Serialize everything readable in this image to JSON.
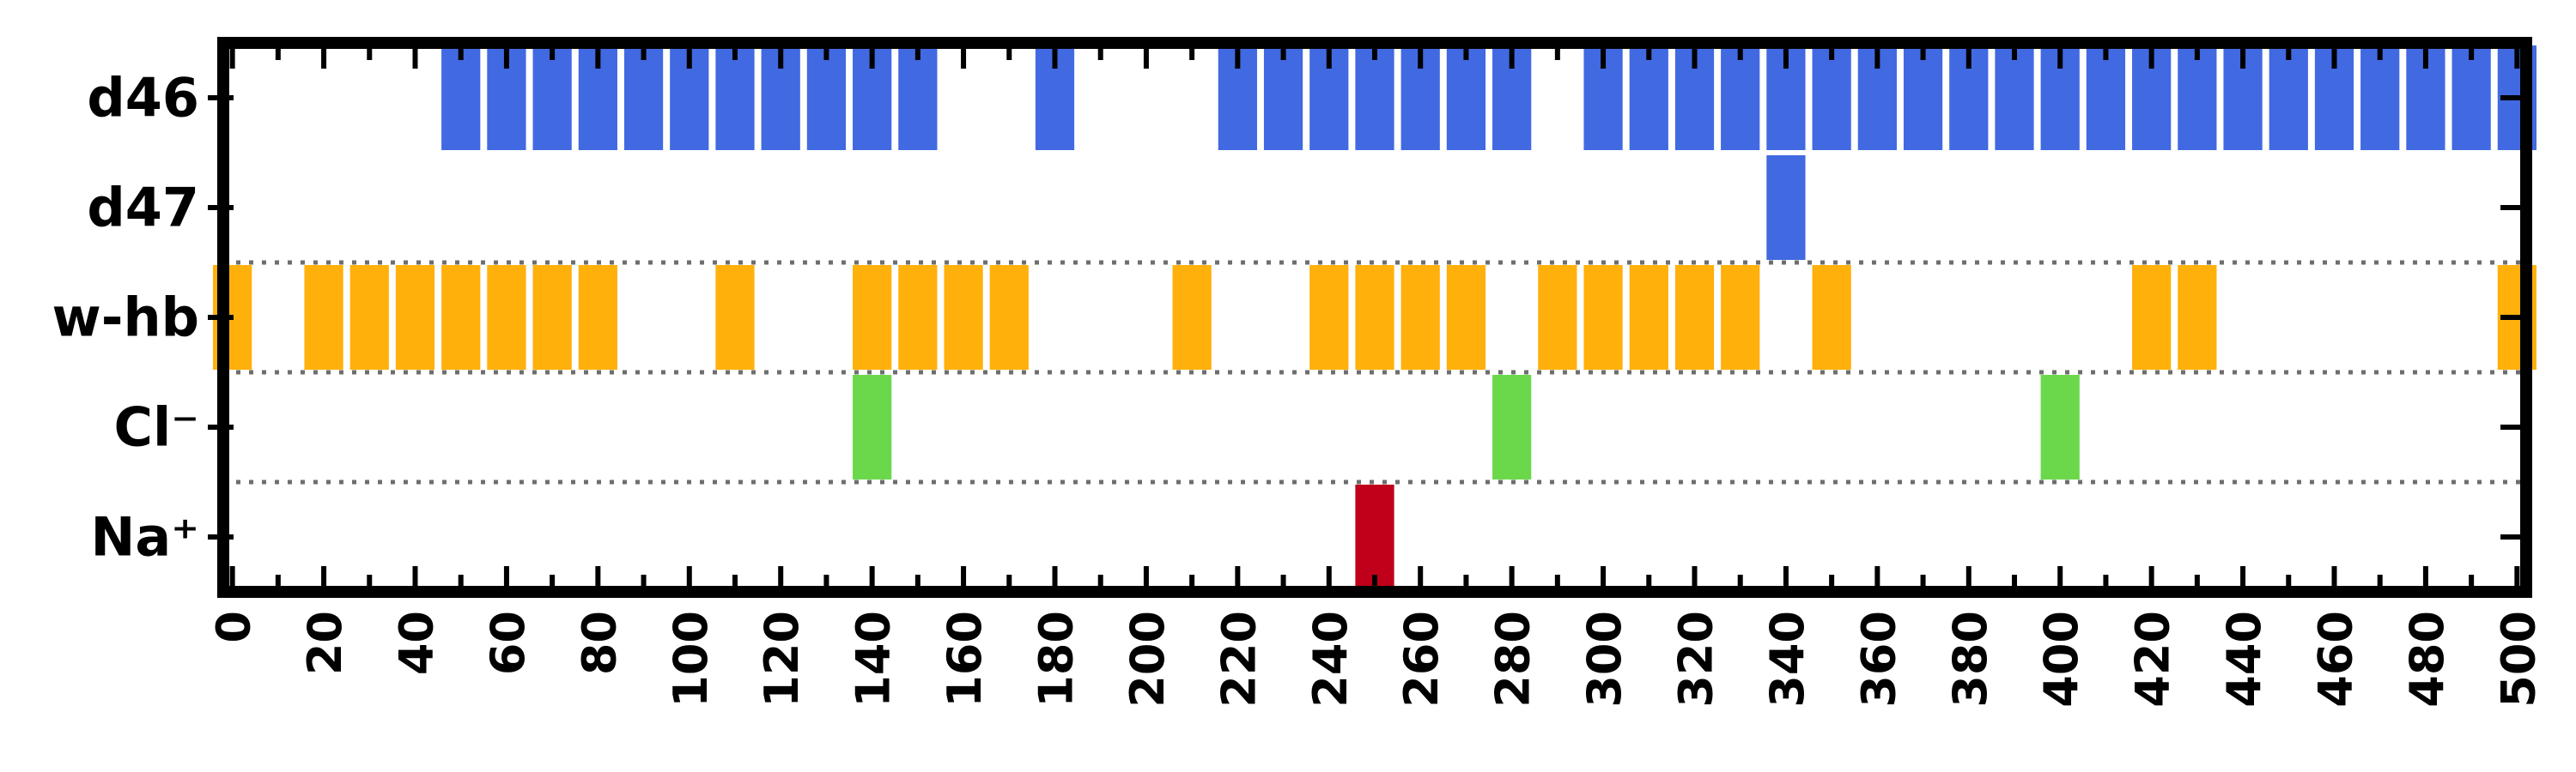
{
  "chart_data": {
    "type": "event-raster",
    "title": "",
    "xlabel": "",
    "ylabel": "",
    "xlim": [
      -2,
      502
    ],
    "xticks": [
      0,
      20,
      40,
      60,
      80,
      100,
      120,
      140,
      160,
      180,
      200,
      220,
      240,
      260,
      280,
      300,
      320,
      340,
      360,
      380,
      400,
      420,
      440,
      460,
      480,
      500
    ],
    "minor_tick_step": 10,
    "bar_width": 8.5,
    "separators_after_rows": [
      "d47",
      "w-hb",
      "Cl⁻"
    ],
    "separator_style": "dotted",
    "rows": [
      {
        "label": "d46",
        "color": "#4169E1",
        "events": [
          50,
          60,
          70,
          80,
          90,
          100,
          110,
          120,
          130,
          140,
          150,
          180,
          220,
          230,
          240,
          250,
          260,
          270,
          280,
          300,
          310,
          320,
          330,
          340,
          350,
          360,
          370,
          380,
          390,
          400,
          410,
          420,
          430,
          440,
          450,
          460,
          470,
          480,
          490,
          500
        ]
      },
      {
        "label": "d47",
        "color": "#4169E1",
        "events": [
          340
        ]
      },
      {
        "label": "w-hb",
        "color": "#FFB00A",
        "events": [
          0,
          20,
          30,
          40,
          50,
          60,
          70,
          80,
          110,
          140,
          150,
          160,
          170,
          210,
          240,
          250,
          260,
          270,
          290,
          300,
          310,
          320,
          330,
          350,
          420,
          430,
          500
        ]
      },
      {
        "label": "Cl⁻",
        "color": "#6BD84B",
        "events": [
          140,
          280,
          400
        ]
      },
      {
        "label": "Na⁺",
        "color": "#C0001A",
        "events": [
          250
        ]
      }
    ]
  }
}
